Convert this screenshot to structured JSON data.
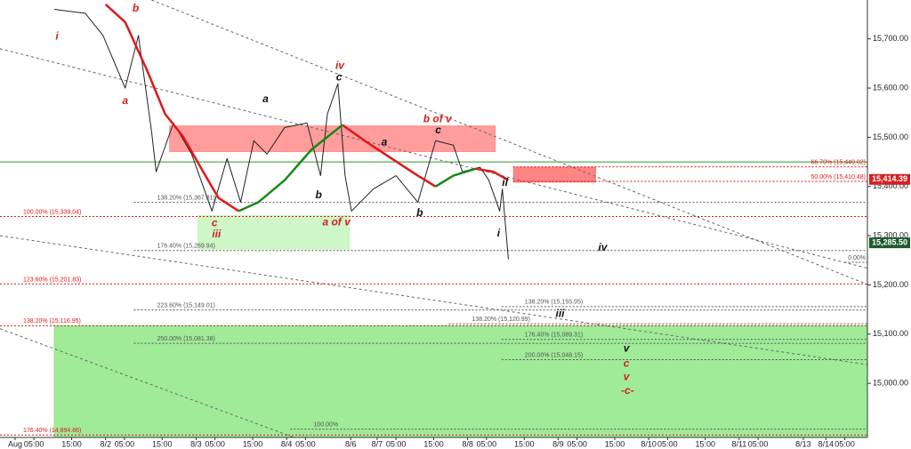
{
  "chart_data": {
    "type": "line",
    "xlim": [
      -4,
      226
    ],
    "ylim": [
      14890,
      15779
    ],
    "xticks": [
      {
        "value": 0,
        "label": "Aug"
      },
      {
        "value": 5,
        "label": "05:00"
      },
      {
        "value": 15,
        "label": "15:00"
      },
      {
        "value": 24,
        "label": "8/2"
      },
      {
        "value": 29,
        "label": "05:00"
      },
      {
        "value": 39,
        "label": "15:00"
      },
      {
        "value": 48,
        "label": "8/3"
      },
      {
        "value": 53,
        "label": "05:00"
      },
      {
        "value": 63,
        "label": "15:00"
      },
      {
        "value": 72,
        "label": "8/4"
      },
      {
        "value": 77,
        "label": "05:00"
      },
      {
        "value": 89,
        "label": "8/6"
      },
      {
        "value": 96,
        "label": "8/7"
      },
      {
        "value": 101,
        "label": "05:00"
      },
      {
        "value": 111,
        "label": "15:00"
      },
      {
        "value": 120,
        "label": "8/8"
      },
      {
        "value": 125,
        "label": "05:00"
      },
      {
        "value": 135,
        "label": "15:00"
      },
      {
        "value": 144,
        "label": "8/9"
      },
      {
        "value": 149,
        "label": "05:00"
      },
      {
        "value": 159,
        "label": "15:00"
      },
      {
        "value": 168,
        "label": "8/10"
      },
      {
        "value": 173,
        "label": "05:00"
      },
      {
        "value": 183,
        "label": "15:00"
      },
      {
        "value": 192,
        "label": "8/11"
      },
      {
        "value": 197,
        "label": "05:00"
      },
      {
        "value": 209,
        "label": "8/13"
      },
      {
        "value": 215,
        "label": "8/14"
      },
      {
        "value": 220,
        "label": "05:00"
      }
    ],
    "yticks": [
      {
        "value": 15000,
        "label": "15,000.00"
      },
      {
        "value": 15100,
        "label": "15,100.00"
      },
      {
        "value": 15200,
        "label": "15,200.00"
      },
      {
        "value": 15300,
        "label": "15,300.00"
      },
      {
        "value": 15400,
        "label": "15,400.00"
      },
      {
        "value": 15500,
        "label": "15,500.00"
      },
      {
        "value": 15600,
        "label": "15,600.00"
      },
      {
        "value": 15700,
        "label": "15,700.00"
      }
    ],
    "series": [
      {
        "color": "#222222",
        "x": [
          10.4,
          18.6,
          23.3,
          29.2,
          32.7,
          36.2,
          37.4,
          42,
          46.8,
          52.2,
          56.2,
          59.8,
          63.3,
          66.8,
          71.5,
          77.4,
          81,
          82.8,
          85.6,
          87.5,
          89.2,
          95,
          101,
          106.8,
          111.5,
          116.2,
          118.6,
          123.3,
          125.6,
          128.5,
          129.2,
          130.8
        ],
        "values": [
          15760,
          15752,
          15707,
          15600,
          15707,
          15511,
          15430,
          15529,
          15466,
          15350,
          15457,
          15368,
          15493,
          15466,
          15520,
          15529,
          15422,
          15547,
          15609,
          15422,
          15350,
          15395,
          15422,
          15368,
          15493,
          15484,
          15430,
          15439,
          15413,
          15350,
          15395,
          15252
        ]
      },
      {
        "color": "#e01818",
        "x": [
          24,
          29.2,
          35,
          39.8,
          44.5,
          49.2,
          53.9,
          59.3,
          64.5,
          71.5,
          78.6,
          86.8,
          92.7,
          99.8,
          106.8,
          111.5,
          116.2,
          122.1,
          126.8,
          130.8
        ],
        "values": [
          15770,
          15734,
          15636,
          15547,
          15502,
          15439,
          15377,
          15350,
          null,
          null,
          null,
          15525,
          15493,
          15457,
          15422,
          15400,
          null,
          15436,
          15430,
          15413
        ]
      },
      {
        "color": "#178a17",
        "x": [
          24,
          29.2,
          35,
          39.8,
          44.5,
          49.2,
          53.9,
          59.3,
          64.5,
          71.5,
          78.6,
          86.8,
          92.7,
          99.8,
          106.8,
          111.5,
          116.2,
          122.1,
          126.8,
          130.8
        ],
        "values": [
          null,
          null,
          null,
          null,
          null,
          null,
          null,
          15350,
          15368,
          15413,
          15475,
          15525,
          null,
          null,
          null,
          15400,
          15422,
          15436,
          null,
          null
        ]
      }
    ],
    "zones": [
      {
        "x1": 41,
        "x2": 127.3,
        "y1": 15471,
        "y2": 15523,
        "color": "#ff8c8c"
      },
      {
        "x1": 48.5,
        "x2": 88.7,
        "y1": 15273,
        "y2": 15341,
        "color": "#c6f5bd"
      },
      {
        "x1": 132.2,
        "x2": 153.9,
        "y1": 15409,
        "y2": 15439,
        "color": "#ff6f6f"
      },
      {
        "x1": 10.4,
        "x2": 226,
        "y1": 14890,
        "y2": 15117,
        "color": "#8ee886"
      }
    ],
    "trendlines": [
      {
        "x1": -4,
        "y1": 15680,
        "x2": 226,
        "y2": 15234
      },
      {
        "x1": 36.2,
        "y1": 15779,
        "x2": 226,
        "y2": 15201
      },
      {
        "x1": -4,
        "y1": 15300,
        "x2": 226,
        "y2": 15038
      },
      {
        "x1": -4,
        "y1": 15111,
        "x2": 73.9,
        "y2": 14890
      }
    ],
    "hline": {
      "value": 15450,
      "color": "#2e9a2e"
    },
    "levels": [
      {
        "value": 15440.02,
        "label": "66.70% (15,440.02)",
        "start": 132,
        "color": "#e01818",
        "side": "right"
      },
      {
        "value": 15410.48,
        "label": "50.00% (15,410.48)",
        "start": 132,
        "color": "#e01818",
        "side": "right"
      },
      {
        "value": 15367.81,
        "label": "138.20% (15,367.81)",
        "start": 31.5,
        "color": "#555555",
        "side": "left"
      },
      {
        "value": 15339.04,
        "label": "100.00% (15,339.04)",
        "start": -4,
        "color": "#e01818",
        "side": "left"
      },
      {
        "value": 15269.94,
        "label": "176.40% (15,269.94)",
        "start": 31.5,
        "color": "#555555",
        "side": "left"
      },
      {
        "value": 15246,
        "label": "0.00%",
        "start": 220,
        "color": "#555555",
        "side": "right"
      },
      {
        "value": 15201.83,
        "label": "123.60% (15,201.83)",
        "start": -4,
        "color": "#e01818",
        "side": "left"
      },
      {
        "value": 15155.95,
        "label": "138.20% (15,155.95)",
        "start": 129,
        "color": "#555555",
        "side": "left"
      },
      {
        "value": 15149.01,
        "label": "223.60% (15,149.01)",
        "start": 31.5,
        "color": "#555555",
        "side": "left"
      },
      {
        "value": 15120.99,
        "label": "138.20% (15,120.99)",
        "start": 115,
        "color": "#555555",
        "side": "left"
      },
      {
        "value": 15116.95,
        "label": "138.20% (15,116.95)",
        "start": -4,
        "color": "#e01818",
        "side": "left"
      },
      {
        "value": 15089.31,
        "label": "176.40% (15,089.31)",
        "start": 129,
        "color": "#555555",
        "side": "left"
      },
      {
        "value": 15081.38,
        "label": "250.00% (15,081.38)",
        "start": 31.5,
        "color": "#555555",
        "side": "left"
      },
      {
        "value": 15048.15,
        "label": "200.00% (15,048.15)",
        "start": 129,
        "color": "#555555",
        "side": "left"
      },
      {
        "value": 14907,
        "label": "100.00%",
        "start": 73,
        "color": "#555555",
        "side": "left"
      },
      {
        "value": 14894.86,
        "label": "176.40% (14,894.86)",
        "start": -4,
        "color": "#e01818",
        "side": "left"
      }
    ],
    "price_tags": [
      {
        "value": 15414.39,
        "label": "15,414.39",
        "color": "#d42020"
      },
      {
        "value": 15285.5,
        "label": "15,285.50",
        "color": "#1e5b2e"
      }
    ],
    "annotations": [
      {
        "label": "i",
        "x": 11.1,
        "y": 15704,
        "color": "#d42020"
      },
      {
        "label": "b",
        "x": 32,
        "y": 15761,
        "color": "#d42020"
      },
      {
        "label": "a",
        "x": 29.2,
        "y": 15573,
        "color": "#d42020"
      },
      {
        "label": "iv",
        "x": 86.1,
        "y": 15645,
        "color": "#d42020"
      },
      {
        "label": "c",
        "x": 85.9,
        "y": 15621,
        "color": "#111111"
      },
      {
        "label": "a",
        "x": 66.4,
        "y": 15577,
        "color": "#111111"
      },
      {
        "label": "b",
        "x": 80.5,
        "y": 15382,
        "color": "#111111"
      },
      {
        "label": "a",
        "x": 97.9,
        "y": 15489,
        "color": "#111111"
      },
      {
        "label": "b of v",
        "x": 112,
        "y": 15536,
        "color": "#d42020"
      },
      {
        "label": "c",
        "x": 112.2,
        "y": 15514,
        "color": "#111111"
      },
      {
        "label": "b",
        "x": 107.3,
        "y": 15346,
        "color": "#111111"
      },
      {
        "label": "c",
        "x": 52.9,
        "y": 15325,
        "color": "#d42020"
      },
      {
        "label": "iii",
        "x": 53.4,
        "y": 15302,
        "color": "#d42020"
      },
      {
        "label": "a of v",
        "x": 85.2,
        "y": 15327,
        "color": "#d42020"
      },
      {
        "label": "ii",
        "x": 129.9,
        "y": 15407,
        "color": "#111111"
      },
      {
        "label": "i",
        "x": 128.2,
        "y": 15304,
        "color": "#111111"
      },
      {
        "label": "iv",
        "x": 155.8,
        "y": 15275,
        "color": "#111111"
      },
      {
        "label": "iii",
        "x": 144.5,
        "y": 15141,
        "color": "#111111"
      },
      {
        "label": "v",
        "x": 162.1,
        "y": 15070,
        "color": "#111111"
      },
      {
        "label": "c",
        "x": 162.1,
        "y": 15039,
        "color": "#d42020"
      },
      {
        "label": "v",
        "x": 162.1,
        "y": 15012,
        "color": "#d42020"
      },
      {
        "label": "-c-",
        "x": 162.4,
        "y": 14984,
        "color": "#d42020"
      }
    ]
  }
}
